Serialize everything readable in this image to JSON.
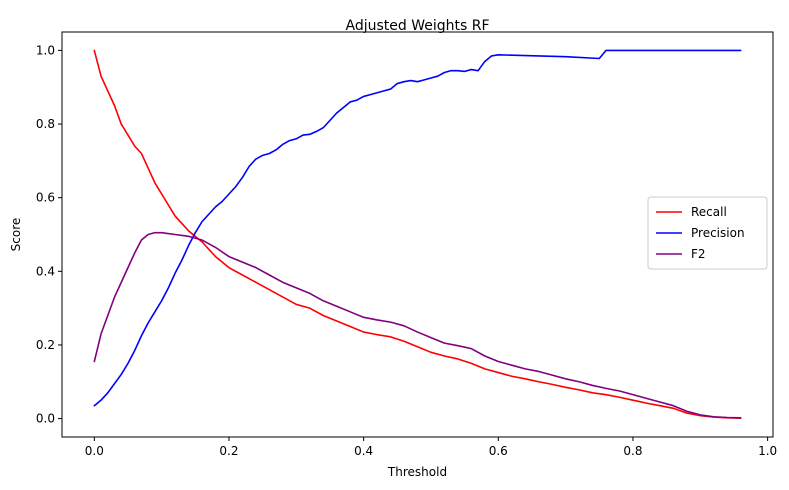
{
  "chart_data": {
    "type": "line",
    "title": "Adjusted Weights RF",
    "xlabel": "Threshold",
    "ylabel": "Score",
    "xlim": [
      -0.048,
      1.008
    ],
    "ylim": [
      -0.05,
      1.05
    ],
    "xticks": [
      0.0,
      0.2,
      0.4,
      0.6,
      0.8,
      1.0
    ],
    "xtick_labels": [
      "0.0",
      "0.2",
      "0.4",
      "0.6",
      "0.8",
      "1.0"
    ],
    "yticks": [
      0.0,
      0.2,
      0.4,
      0.6,
      0.8,
      1.0
    ],
    "ytick_labels": [
      "0.0",
      "0.2",
      "0.4",
      "0.6",
      "0.8",
      "1.0"
    ],
    "grid": false,
    "legend_position": "center-right",
    "series": [
      {
        "name": "Recall",
        "color": "#ff0000",
        "x": [
          0.0,
          0.01,
          0.02,
          0.03,
          0.04,
          0.05,
          0.06,
          0.07,
          0.08,
          0.09,
          0.1,
          0.12,
          0.14,
          0.16,
          0.18,
          0.2,
          0.22,
          0.24,
          0.26,
          0.28,
          0.3,
          0.32,
          0.34,
          0.36,
          0.38,
          0.4,
          0.42,
          0.44,
          0.46,
          0.48,
          0.5,
          0.52,
          0.54,
          0.56,
          0.58,
          0.6,
          0.62,
          0.64,
          0.66,
          0.68,
          0.7,
          0.72,
          0.74,
          0.76,
          0.78,
          0.8,
          0.82,
          0.84,
          0.86,
          0.88,
          0.9,
          0.92,
          0.94,
          0.96
        ],
        "y": [
          1.0,
          0.93,
          0.89,
          0.85,
          0.8,
          0.77,
          0.74,
          0.72,
          0.68,
          0.64,
          0.61,
          0.55,
          0.51,
          0.48,
          0.44,
          0.41,
          0.39,
          0.37,
          0.35,
          0.33,
          0.31,
          0.3,
          0.28,
          0.265,
          0.25,
          0.235,
          0.228,
          0.222,
          0.21,
          0.195,
          0.18,
          0.17,
          0.162,
          0.15,
          0.135,
          0.125,
          0.115,
          0.108,
          0.1,
          0.093,
          0.085,
          0.078,
          0.07,
          0.065,
          0.058,
          0.05,
          0.042,
          0.035,
          0.028,
          0.015,
          0.008,
          0.004,
          0.002,
          0.001
        ]
      },
      {
        "name": "Precision",
        "color": "#0000ff",
        "x": [
          0.0,
          0.01,
          0.02,
          0.03,
          0.04,
          0.05,
          0.06,
          0.07,
          0.08,
          0.09,
          0.1,
          0.11,
          0.12,
          0.13,
          0.14,
          0.15,
          0.16,
          0.17,
          0.18,
          0.19,
          0.2,
          0.21,
          0.22,
          0.23,
          0.24,
          0.25,
          0.26,
          0.27,
          0.28,
          0.29,
          0.3,
          0.31,
          0.32,
          0.33,
          0.34,
          0.35,
          0.36,
          0.37,
          0.38,
          0.39,
          0.4,
          0.41,
          0.42,
          0.43,
          0.44,
          0.45,
          0.46,
          0.47,
          0.48,
          0.49,
          0.5,
          0.51,
          0.52,
          0.53,
          0.54,
          0.55,
          0.56,
          0.57,
          0.58,
          0.59,
          0.6,
          0.62,
          0.66,
          0.7,
          0.75,
          0.76,
          0.8,
          0.85,
          0.9,
          0.96
        ],
        "y": [
          0.035,
          0.05,
          0.07,
          0.095,
          0.12,
          0.15,
          0.185,
          0.225,
          0.26,
          0.29,
          0.32,
          0.355,
          0.395,
          0.43,
          0.47,
          0.505,
          0.535,
          0.555,
          0.575,
          0.59,
          0.61,
          0.63,
          0.655,
          0.685,
          0.705,
          0.715,
          0.72,
          0.73,
          0.745,
          0.755,
          0.76,
          0.77,
          0.772,
          0.78,
          0.79,
          0.81,
          0.83,
          0.845,
          0.86,
          0.865,
          0.875,
          0.88,
          0.885,
          0.89,
          0.895,
          0.91,
          0.915,
          0.918,
          0.915,
          0.92,
          0.925,
          0.93,
          0.94,
          0.945,
          0.945,
          0.943,
          0.948,
          0.945,
          0.97,
          0.985,
          0.988,
          0.987,
          0.985,
          0.983,
          0.978,
          1.0,
          1.0,
          1.0,
          1.0,
          1.0
        ]
      },
      {
        "name": "F2",
        "color": "#800080",
        "x": [
          0.0,
          0.01,
          0.02,
          0.03,
          0.04,
          0.05,
          0.06,
          0.07,
          0.08,
          0.09,
          0.1,
          0.12,
          0.14,
          0.16,
          0.18,
          0.2,
          0.22,
          0.24,
          0.26,
          0.28,
          0.3,
          0.32,
          0.34,
          0.36,
          0.38,
          0.4,
          0.42,
          0.44,
          0.46,
          0.48,
          0.5,
          0.52,
          0.54,
          0.56,
          0.58,
          0.6,
          0.62,
          0.64,
          0.66,
          0.68,
          0.7,
          0.72,
          0.74,
          0.76,
          0.78,
          0.8,
          0.82,
          0.84,
          0.86,
          0.88,
          0.9,
          0.92,
          0.94,
          0.96
        ],
        "y": [
          0.155,
          0.23,
          0.28,
          0.33,
          0.37,
          0.41,
          0.45,
          0.485,
          0.5,
          0.505,
          0.505,
          0.5,
          0.495,
          0.485,
          0.465,
          0.44,
          0.425,
          0.41,
          0.39,
          0.37,
          0.355,
          0.34,
          0.32,
          0.305,
          0.29,
          0.275,
          0.268,
          0.262,
          0.252,
          0.235,
          0.22,
          0.205,
          0.198,
          0.19,
          0.17,
          0.155,
          0.145,
          0.135,
          0.128,
          0.118,
          0.108,
          0.1,
          0.09,
          0.082,
          0.075,
          0.065,
          0.055,
          0.045,
          0.035,
          0.02,
          0.01,
          0.005,
          0.003,
          0.002
        ]
      }
    ]
  }
}
